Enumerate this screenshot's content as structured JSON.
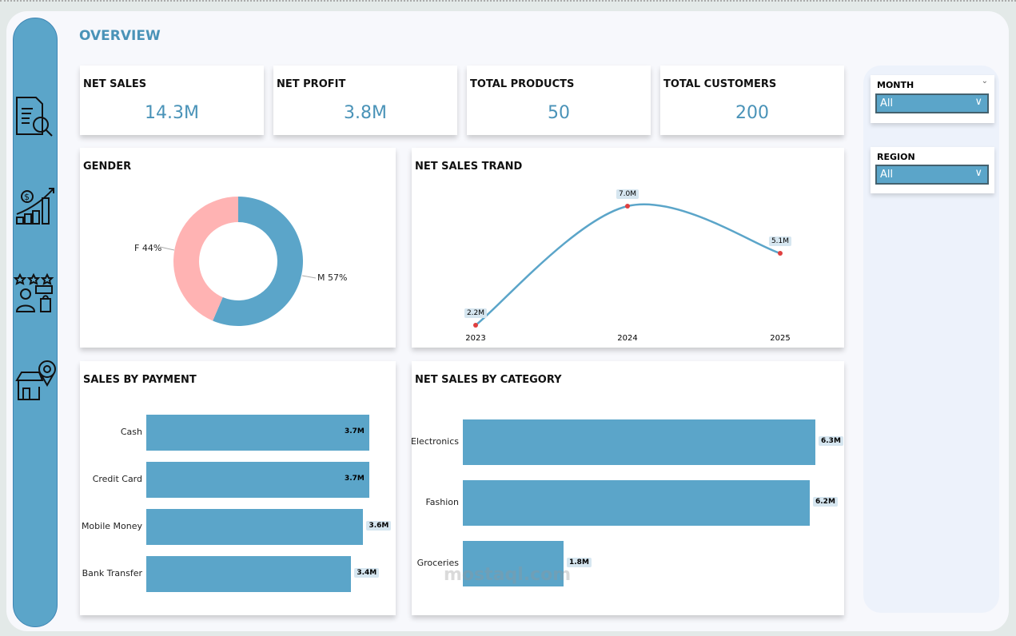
{
  "header": {
    "title": "OVERVIEW"
  },
  "sidebar": {
    "items": [
      {
        "icon": "report-search-icon"
      },
      {
        "icon": "sales-growth-icon"
      },
      {
        "icon": "customer-rating-icon"
      },
      {
        "icon": "store-location-icon"
      }
    ]
  },
  "kpis": [
    {
      "label": "NET SALES",
      "value": "14.3M"
    },
    {
      "label": "NET PROFIT",
      "value": "3.8M"
    },
    {
      "label": "TOTAL PRODUCTS",
      "value": "50"
    },
    {
      "label": "TOTAL CUSTOMERS",
      "value": "200"
    }
  ],
  "gender": {
    "title": "GENDER",
    "slices": [
      {
        "label": "M 57%",
        "value": 57,
        "color": "#5ba5c9"
      },
      {
        "label": "F 44%",
        "value": 44,
        "color": "#ffb3b3"
      }
    ]
  },
  "trend": {
    "title": "NET SALES TRAND",
    "x": [
      "2023",
      "2024",
      "2025"
    ],
    "values": [
      2.2,
      7.0,
      5.1
    ],
    "labels": [
      "2.2M",
      "7.0M",
      "5.1M"
    ]
  },
  "payment": {
    "title": "SALES BY PAYMENT",
    "categories": [
      "Cash",
      "Credit Card",
      "Mobile Money",
      "Bank Transfer"
    ],
    "values": [
      3.7,
      3.7,
      3.6,
      3.4
    ],
    "labels": [
      "3.7M",
      "3.7M",
      "3.6M",
      "3.4M"
    ]
  },
  "category": {
    "title": "NET SALES BY CATEGORY",
    "categories": [
      "Electronics",
      "Fashion",
      "Groceries"
    ],
    "values": [
      6.3,
      6.2,
      1.8
    ],
    "labels": [
      "6.3M",
      "6.2M",
      "1.8M"
    ]
  },
  "filters": {
    "month": {
      "label": "MONTH",
      "value": "All"
    },
    "region": {
      "label": "REGION",
      "value": "All"
    }
  },
  "colors": {
    "accent": "#5ba5c9",
    "title": "#4a93b8",
    "female": "#ffb3b3",
    "point": "#e04040"
  },
  "watermark": "mostaql.com"
}
